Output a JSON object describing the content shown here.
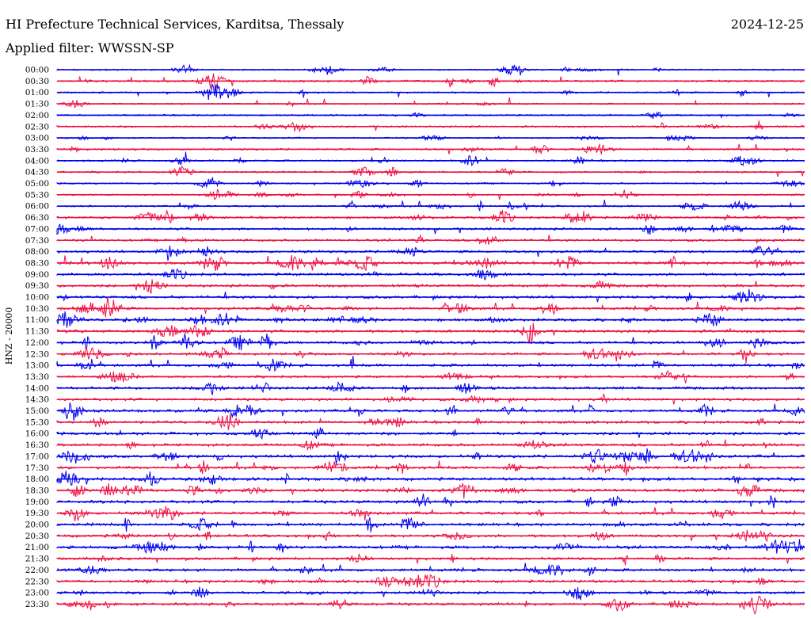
{
  "header": {
    "station": "HI Prefecture Technical Services, Karditsa, Thessaly",
    "date": "2024-12-25",
    "filter": "Applied filter: WWSSN-SP"
  },
  "chart_data": {
    "type": "line",
    "ylabel": "HNZ - 20000",
    "colors": {
      "even_rows": "#0000ee",
      "odd_rows": "#ee1144",
      "text": "#000000"
    },
    "rows": [
      "00:00",
      "00:30",
      "01:00",
      "01:30",
      "02:00",
      "02:30",
      "03:00",
      "03:30",
      "04:00",
      "04:30",
      "05:00",
      "05:30",
      "06:00",
      "06:30",
      "07:00",
      "07:30",
      "08:00",
      "08:30",
      "09:00",
      "09:30",
      "10:00",
      "10:30",
      "11:00",
      "11:30",
      "12:00",
      "12:30",
      "13:00",
      "13:30",
      "14:00",
      "14:30",
      "15:00",
      "15:30",
      "16:00",
      "16:30",
      "17:00",
      "17:30",
      "18:00",
      "18:30",
      "19:00",
      "19:30",
      "20:00",
      "20:30",
      "21:00",
      "21:30",
      "22:00",
      "22:30",
      "23:00",
      "23:30"
    ],
    "noise_level": [
      0.18,
      0.35,
      0.22,
      0.2,
      0.25,
      0.3,
      0.2,
      0.35,
      0.3,
      0.3,
      0.25,
      0.25,
      0.3,
      0.45,
      0.5,
      0.5,
      0.55,
      0.65,
      0.6,
      0.6,
      0.65,
      0.6,
      0.6,
      0.65,
      0.55,
      0.5,
      0.6,
      0.5,
      0.55,
      0.6,
      0.6,
      0.6,
      0.65,
      0.65,
      0.7,
      0.65,
      0.7,
      0.7,
      0.7,
      0.65,
      0.65,
      0.65,
      0.7,
      0.6,
      0.65,
      0.65,
      0.55,
      0.6
    ]
  }
}
